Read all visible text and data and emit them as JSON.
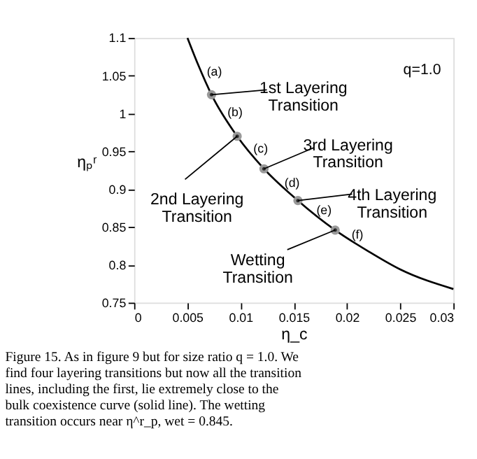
{
  "chart_data": {
    "type": "line",
    "xlabel": "η_c",
    "ylabel": "ηₚʳ",
    "xlim": [
      0,
      0.03
    ],
    "ylim": [
      0.75,
      1.1
    ],
    "xticks": [
      0,
      0.005,
      0.01,
      0.015,
      0.02,
      0.025,
      0.03
    ],
    "yticks": [
      0.75,
      0.8,
      0.85,
      0.9,
      0.95,
      1,
      1.05,
      1.1
    ],
    "grid": false,
    "series": [
      {
        "color": "#000000",
        "x": [
          0.00501,
          0.006,
          0.00727,
          0.00968,
          0.0122,
          0.01539,
          0.01889,
          0.022,
          0.025,
          0.03
        ],
        "values": [
          1.1,
          1.065,
          1.025,
          0.97,
          0.927,
          0.885,
          0.846,
          0.818,
          0.794,
          0.768
        ]
      },
      {
        "type": "scatter",
        "color": "#999999",
        "marker": "circle",
        "x": [
          0.00727,
          0.00968,
          0.0122,
          0.01539,
          0.01889
        ],
        "values": [
          1.025,
          0.97,
          0.927,
          0.885,
          0.846
        ]
      }
    ],
    "annotations": [
      "q=1.0",
      "Figure 15.  As in figure 9 but for size ratio q = 1.0. We find four layering transitions but now all the transition lines, including the first, lie extremely close to the bulk coexistence curve (solid line). The wetting transition occurs near η^r_p, wet = 0.845.",
      "(a)",
      "(b)",
      "(c)",
      "(d)",
      "(e)",
      "(f)",
      {
        "text": "1st Layering Transition",
        "x": 0.00727,
        "y": 1.025
      },
      {
        "text": "2nd Layering Transition",
        "x": 0.00968,
        "y": 0.97
      },
      {
        "text": "3rd Layering Transition",
        "x": 0.0122,
        "y": 0.927
      },
      {
        "text": "4th Layering Transition",
        "x": 0.01539,
        "y": 0.885
      },
      {
        "text": "Wetting Transition",
        "x": 0.01889,
        "y": 0.846
      }
    ]
  }
}
